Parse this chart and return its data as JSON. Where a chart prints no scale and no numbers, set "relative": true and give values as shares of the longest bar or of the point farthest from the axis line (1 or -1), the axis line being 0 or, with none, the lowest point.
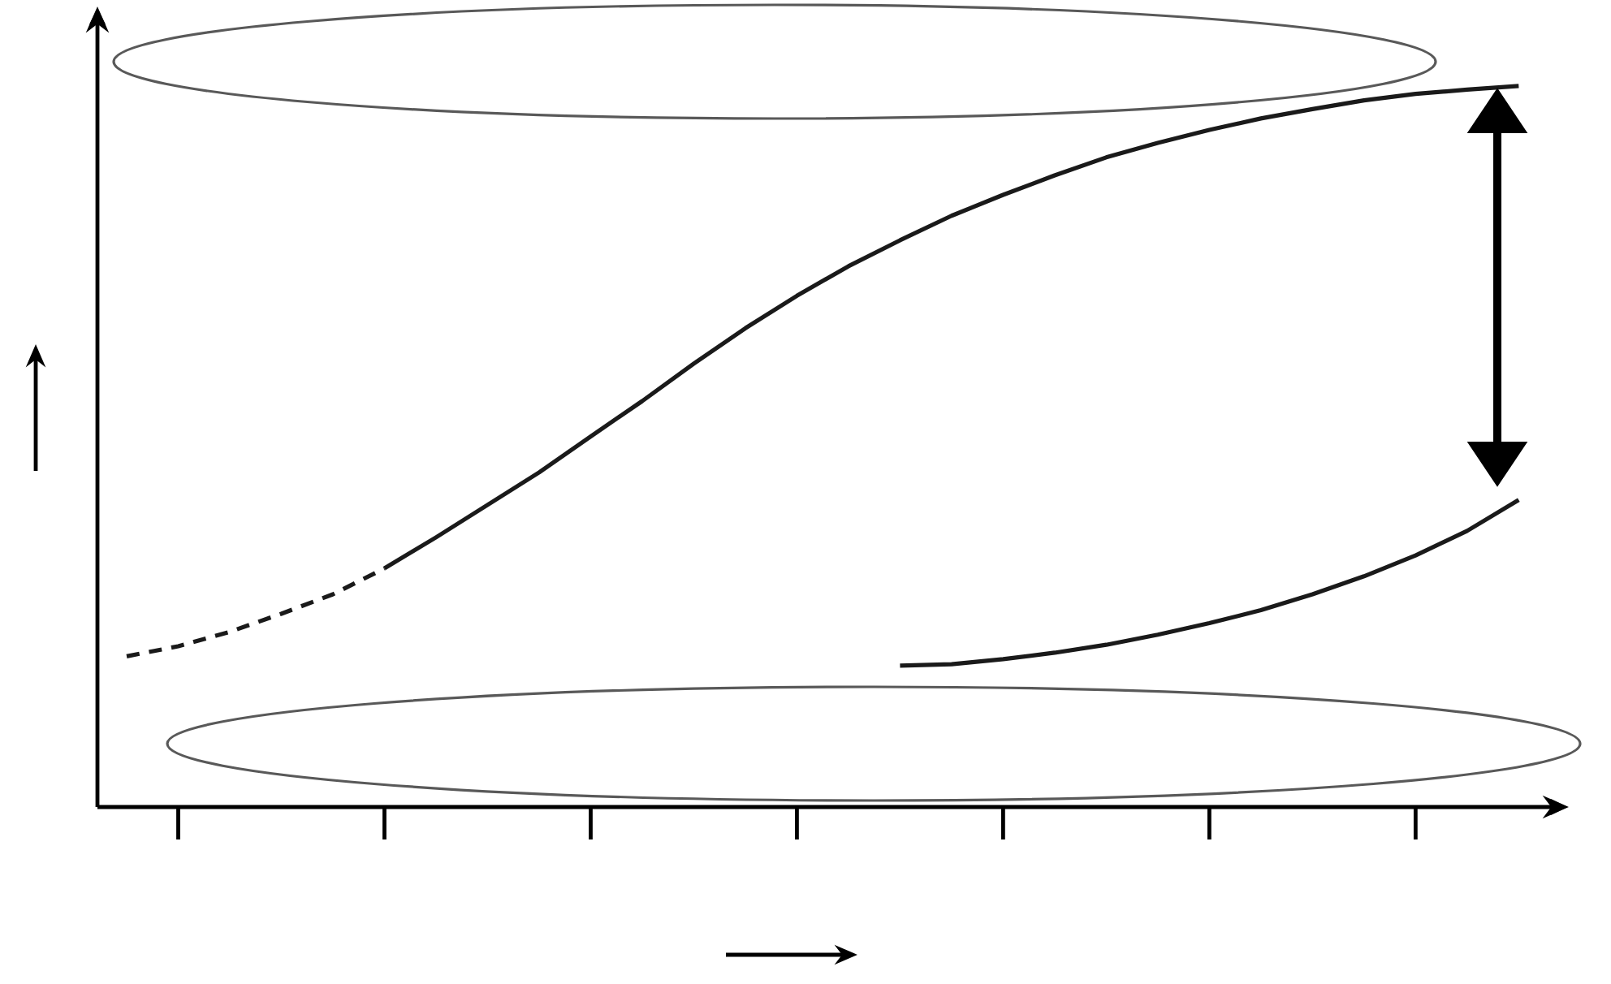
{
  "chart_data": {
    "type": "line",
    "relative": true,
    "categories": [
      null,
      null,
      null,
      null,
      null,
      null,
      null,
      null,
      null,
      null,
      null,
      null,
      null,
      null,
      null,
      null,
      null,
      null,
      null,
      null,
      null,
      null,
      null,
      null,
      null,
      null,
      null,
      null
    ],
    "series": [
      {
        "color": "#1a1a1a",
        "line_style": "dashed",
        "values": [
          0.209,
          0.223,
          0.243,
          0.268,
          0.295,
          0.331,
          null,
          null,
          null,
          null,
          null,
          null,
          null,
          null,
          null,
          null,
          null,
          null,
          null,
          null,
          null,
          null,
          null,
          null,
          null,
          null,
          null,
          null
        ]
      },
      {
        "color": "#1a1a1a",
        "line_style": "solid",
        "values": [
          null,
          null,
          null,
          null,
          null,
          0.331,
          0.374,
          0.419,
          0.464,
          0.514,
          0.563,
          0.615,
          0.664,
          0.709,
          0.75,
          0.786,
          0.82,
          0.849,
          0.876,
          0.901,
          0.921,
          0.939,
          0.955,
          0.968,
          0.98,
          0.989,
          0.995,
          1.0
        ]
      },
      {
        "color": "#1a1a1a",
        "line_style": "solid",
        "values": [
          null,
          null,
          null,
          null,
          null,
          null,
          null,
          null,
          null,
          null,
          null,
          null,
          null,
          null,
          null,
          0.196,
          0.198,
          0.205,
          0.214,
          0.225,
          0.239,
          0.255,
          0.273,
          0.295,
          0.32,
          0.349,
          0.383,
          0.426
        ]
      }
    ]
  }
}
